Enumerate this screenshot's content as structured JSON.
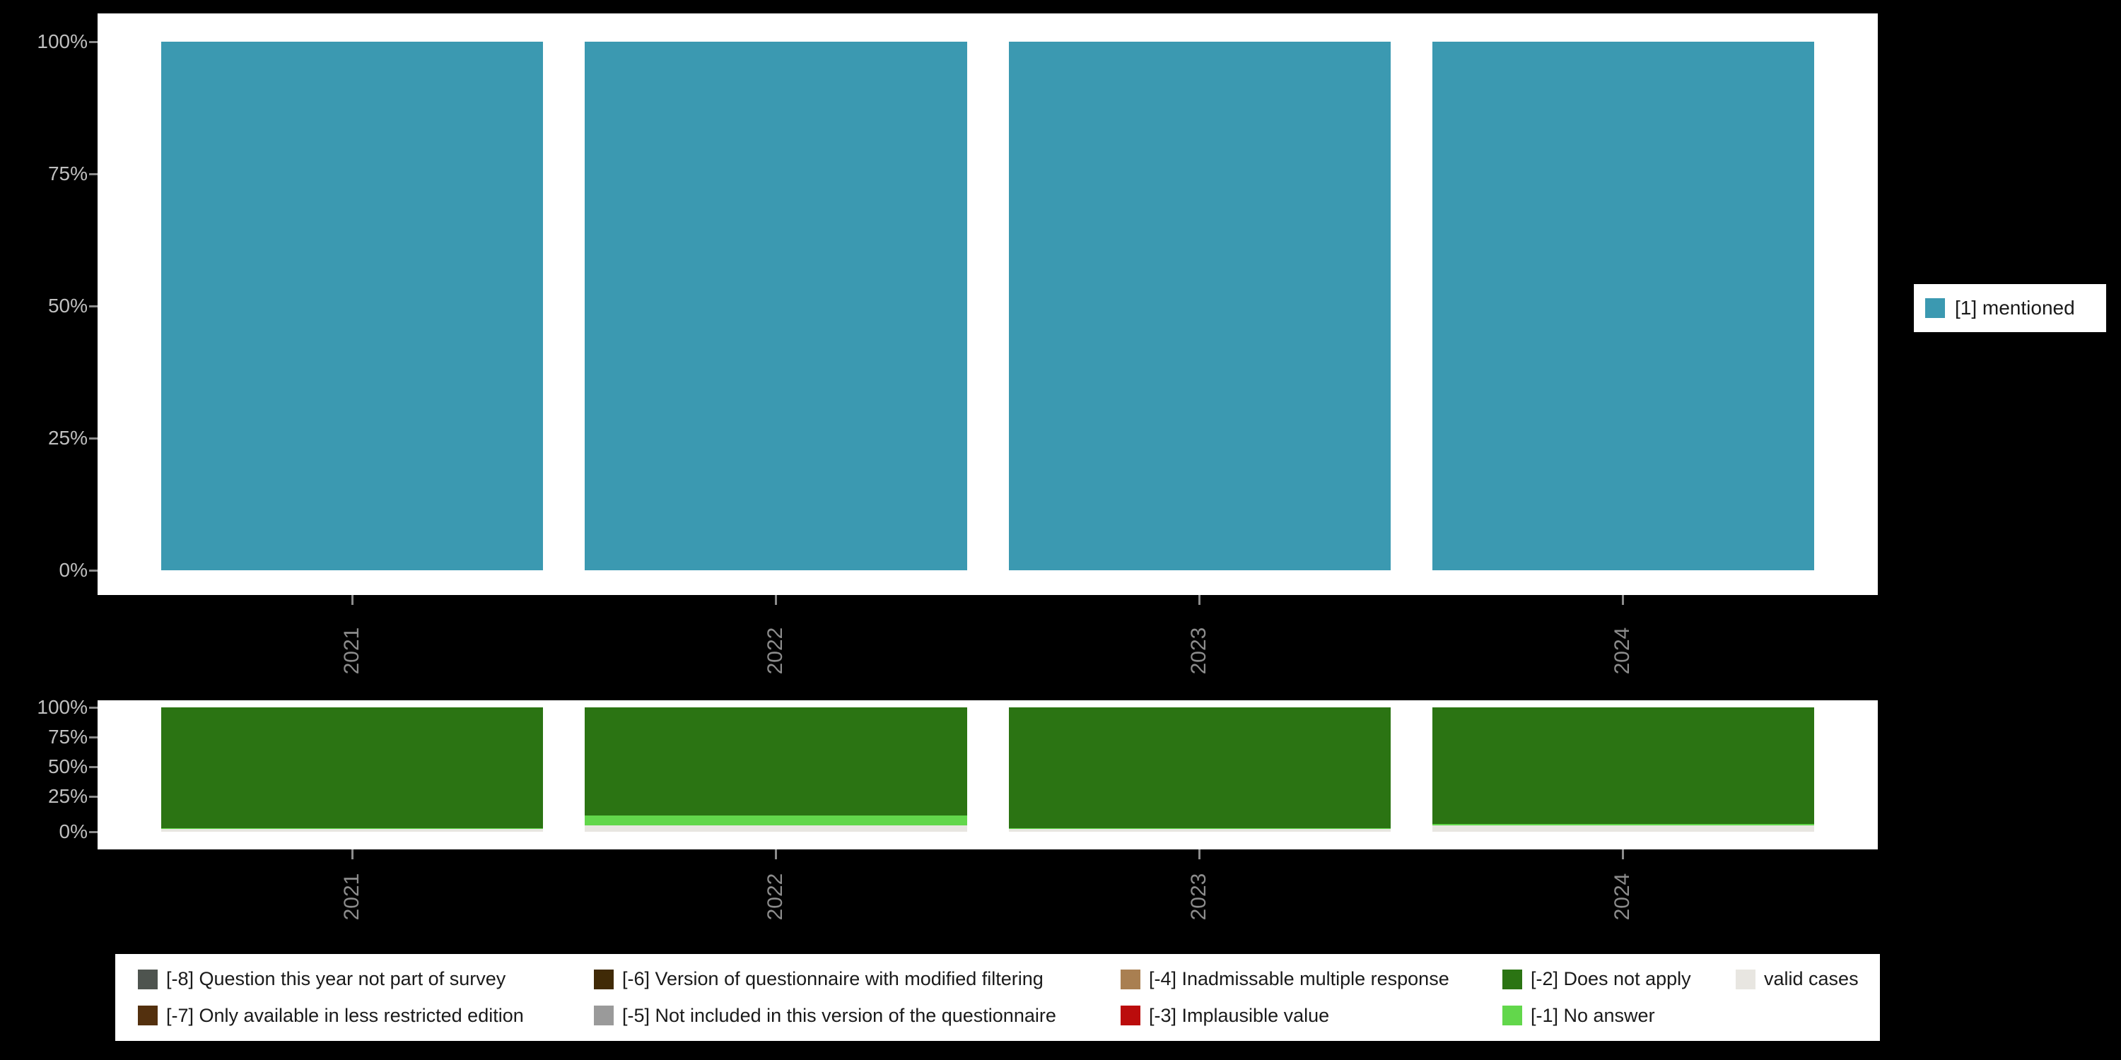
{
  "page": {
    "background": "#000000"
  },
  "chart_data": [
    {
      "id": "valid-values-by-year",
      "type": "bar",
      "subtype": "stacked_percent",
      "categories": [
        "2021",
        "2022",
        "2023",
        "2024"
      ],
      "series": [
        {
          "name": "[1] mentioned",
          "color": "#3b99b1",
          "values": [
            100,
            100,
            100,
            100
          ]
        }
      ],
      "yticks": [
        "100%",
        "75%",
        "50%",
        "25%",
        "0%"
      ],
      "ylim": [
        0,
        100
      ],
      "grid": false,
      "legend_position": "right",
      "x_label_rotation": 90
    },
    {
      "id": "missing-values-by-year",
      "type": "bar",
      "subtype": "stacked_percent",
      "categories": [
        "2021",
        "2022",
        "2023",
        "2024"
      ],
      "series": [
        {
          "name": "[-2] Does not apply",
          "color": "#2b7413",
          "values": [
            97,
            87,
            97,
            94
          ]
        },
        {
          "name": "[-1] No answer",
          "color": "#62d74b",
          "values": [
            1,
            8,
            1,
            1
          ]
        },
        {
          "name": "valid cases",
          "color": "#e8e6e1",
          "values": [
            2,
            5,
            2,
            5
          ]
        }
      ],
      "stack_order": "top_to_bottom",
      "yticks": [
        "100%",
        "75%",
        "50%",
        "25%",
        "0%"
      ],
      "ylim": [
        0,
        100
      ],
      "grid": false,
      "legend_position": "bottom",
      "x_label_rotation": 90
    }
  ],
  "legend_right": {
    "items": [
      {
        "label": "[1] mentioned",
        "color": "#3b99b1"
      }
    ]
  },
  "legend_bottom": {
    "rows": [
      [
        {
          "label": "[-8] Question this year not part of survey",
          "color": "#4e544f"
        },
        {
          "label": "[-6] Version of questionnaire with modified filtering",
          "color": "#402a07"
        },
        {
          "label": "[-4] Inadmissable multiple response",
          "color": "#a97f51"
        },
        {
          "label": "[-2] Does not apply",
          "color": "#2b7413"
        },
        {
          "label": "valid cases",
          "color": "#e8e6e1"
        }
      ],
      [
        {
          "label": "[-7] Only available in less restricted edition",
          "color": "#53300e"
        },
        {
          "label": "[-5] Not included in this version of the questionnaire",
          "color": "#9a9a9a"
        },
        {
          "label": "[-3] Implausible value",
          "color": "#bb0c0c"
        },
        {
          "label": "[-1] No answer",
          "color": "#62d74b"
        }
      ]
    ]
  }
}
